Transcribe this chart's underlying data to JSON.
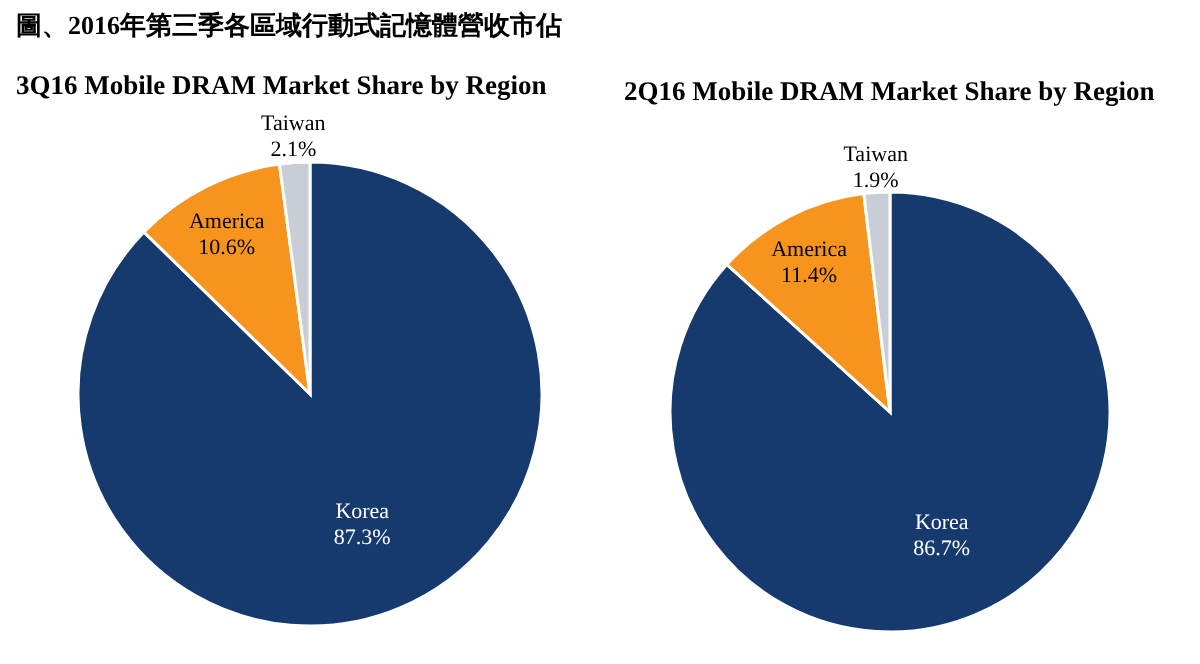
{
  "chart_data": [
    {
      "type": "pie",
      "title": "圖、2016年第三季各區域行動式記憶體營收市佔",
      "subtitle": "3Q16 Mobile DRAM Market Share by Region",
      "categories": [
        "Korea",
        "America",
        "Taiwan"
      ],
      "values": [
        87.3,
        10.6,
        2.1
      ],
      "value_labels": [
        "87.3%",
        "10.6%",
        "2.1%"
      ],
      "colors": [
        "#163a6e",
        "#f7941d",
        "#c9ced6"
      ]
    },
    {
      "type": "pie",
      "title": "2Q16 Mobile DRAM Market Share by Region",
      "categories": [
        "Korea",
        "America",
        "Taiwan"
      ],
      "values": [
        86.7,
        11.4,
        1.9
      ],
      "value_labels": [
        "86.7%",
        "11.4%",
        "1.9%"
      ],
      "colors": [
        "#163a6e",
        "#f7941d",
        "#c9ced6"
      ]
    }
  ]
}
